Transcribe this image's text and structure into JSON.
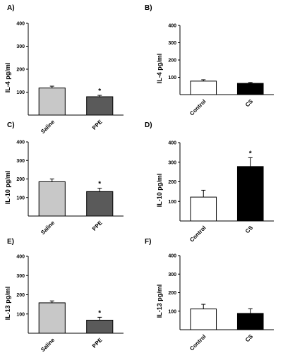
{
  "chart_data": [
    {
      "panel": "A)",
      "type": "bar",
      "ylabel": "IL-4 pg/ml",
      "ylim": [
        0,
        400
      ],
      "yticks": [
        100,
        200,
        300,
        400
      ],
      "categories": [
        "Saline",
        "PPE"
      ],
      "values": [
        118,
        80
      ],
      "errors": [
        8,
        6
      ],
      "colors": [
        "#c8c8c8",
        "#5a5a5a"
      ],
      "significance": [
        "",
        "*"
      ]
    },
    {
      "panel": "B)",
      "type": "bar",
      "ylabel": "IL-4 pg/ml",
      "ylim": [
        0,
        400
      ],
      "yticks": [
        100,
        200,
        300,
        400
      ],
      "categories": [
        "Control",
        "CS"
      ],
      "values": [
        78,
        65
      ],
      "errors": [
        8,
        5
      ],
      "colors": [
        "#ffffff",
        "#000000"
      ],
      "significance": [
        "",
        ""
      ]
    },
    {
      "panel": "C)",
      "type": "bar",
      "ylabel": "IL-10 pg/ml",
      "ylim": [
        0,
        400
      ],
      "yticks": [
        100,
        200,
        300,
        400
      ],
      "categories": [
        "Saline",
        "PPE"
      ],
      "values": [
        185,
        132
      ],
      "errors": [
        15,
        18
      ],
      "colors": [
        "#c8c8c8",
        "#5a5a5a"
      ],
      "significance": [
        "",
        "*"
      ]
    },
    {
      "panel": "D)",
      "type": "bar",
      "ylabel": "IL-10 pg/ml",
      "ylim": [
        0,
        400
      ],
      "yticks": [
        100,
        200,
        300,
        400
      ],
      "categories": [
        "Control",
        "CS"
      ],
      "values": [
        122,
        278
      ],
      "errors": [
        35,
        45
      ],
      "colors": [
        "#ffffff",
        "#000000"
      ],
      "significance": [
        "",
        "*"
      ]
    },
    {
      "panel": "E)",
      "type": "bar",
      "ylabel": "IL-13 pg/ml",
      "ylim": [
        0,
        400
      ],
      "yticks": [
        100,
        200,
        300,
        400
      ],
      "categories": [
        "Saline",
        "PPE"
      ],
      "values": [
        158,
        68
      ],
      "errors": [
        10,
        15
      ],
      "colors": [
        "#c8c8c8",
        "#5a5a5a"
      ],
      "significance": [
        "",
        "*"
      ]
    },
    {
      "panel": "F)",
      "type": "bar",
      "ylabel": "IL-13 pg/ml",
      "ylim": [
        0,
        400
      ],
      "yticks": [
        100,
        200,
        300,
        400
      ],
      "categories": [
        "Control",
        "CS"
      ],
      "values": [
        112,
        88
      ],
      "errors": [
        25,
        25
      ],
      "colors": [
        "#ffffff",
        "#000000"
      ],
      "significance": [
        "",
        ""
      ]
    }
  ]
}
